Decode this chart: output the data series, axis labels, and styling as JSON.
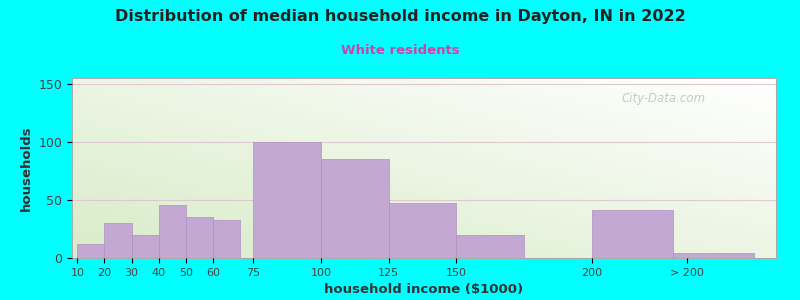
{
  "title": "Distribution of median household income in Dayton, IN in 2022",
  "subtitle": "White residents",
  "xlabel": "household income ($1000)",
  "ylabel": "households",
  "bg_color": "#00FFFF",
  "bar_color": "#C4A8D4",
  "bar_edge_color": "#B090C0",
  "subtitle_color": "#CC44AA",
  "title_color": "#222222",
  "values": [
    12,
    30,
    20,
    46,
    35,
    33,
    100,
    85,
    47,
    20,
    41,
    4
  ],
  "bar_lefts": [
    10,
    20,
    30,
    40,
    50,
    60,
    75,
    100,
    125,
    150,
    200,
    230
  ],
  "bar_widths": [
    10,
    10,
    10,
    10,
    10,
    10,
    25,
    25,
    25,
    25,
    30,
    30
  ],
  "xtick_positions": [
    10,
    20,
    30,
    40,
    50,
    60,
    75,
    100,
    125,
    150,
    200,
    235
  ],
  "xtick_labels": [
    "10",
    "20",
    "30",
    "40",
    "50",
    "60",
    "75",
    "100",
    "125",
    "150",
    "200",
    "> 200"
  ],
  "xlim": [
    8,
    268
  ],
  "ylim": [
    0,
    155
  ],
  "yticks": [
    0,
    50,
    100,
    150
  ],
  "watermark": "City-Data.com"
}
